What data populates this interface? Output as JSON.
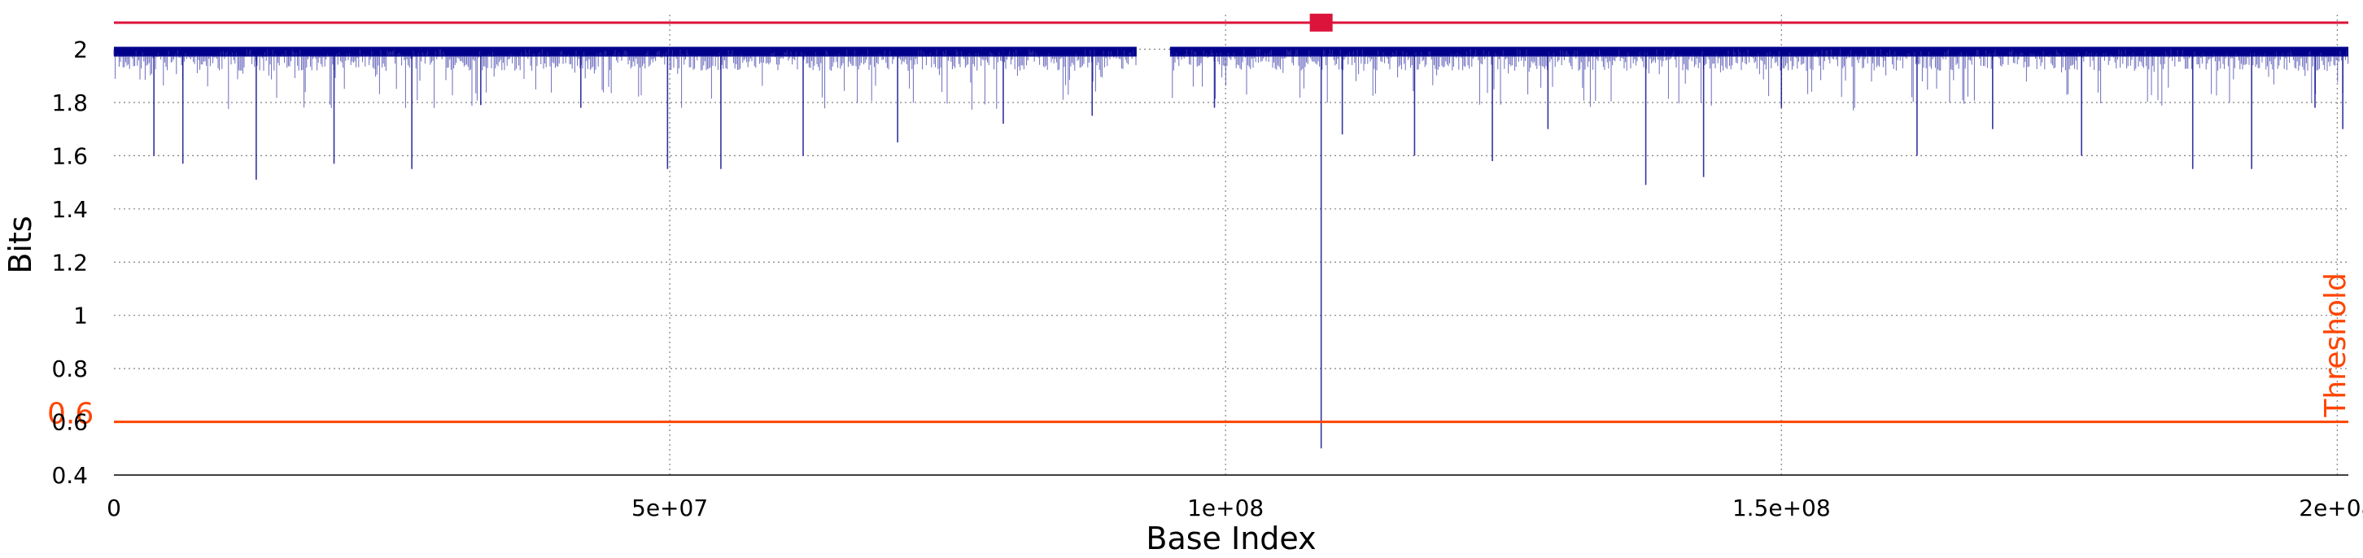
{
  "chart_data": {
    "type": "line",
    "xlabel": "Base Index",
    "ylabel": "Bits",
    "xlim": [
      0,
      201000000
    ],
    "ylim": [
      0.4,
      2.13
    ],
    "x_ticks": [
      {
        "value": 0,
        "label": "0"
      },
      {
        "value": 50000000,
        "label": "5e+07"
      },
      {
        "value": 100000000,
        "label": "1e+08"
      },
      {
        "value": 150000000,
        "label": "1.5e+08"
      },
      {
        "value": 200000000,
        "label": "2e+08"
      }
    ],
    "y_ticks": [
      {
        "value": 0.4,
        "label": "0.4"
      },
      {
        "value": 0.6,
        "label": "0.6"
      },
      {
        "value": 0.8,
        "label": "0.8"
      },
      {
        "value": 1.0,
        "label": "1"
      },
      {
        "value": 1.2,
        "label": "1.2"
      },
      {
        "value": 1.4,
        "label": "1.4"
      },
      {
        "value": 1.6,
        "label": "1.6"
      },
      {
        "value": 1.8,
        "label": "1.8"
      },
      {
        "value": 2.0,
        "label": "2"
      }
    ],
    "grid": true,
    "colors": {
      "series": "#00008b",
      "threshold": "#ff4500",
      "top_line": "#dc143c",
      "grid": "#808080"
    },
    "series": [
      {
        "baseline": 2.0,
        "gap": [
          92000000,
          95000000
        ],
        "dips": [
          [
            3600000,
            1.6
          ],
          [
            6200000,
            1.57
          ],
          [
            12800000,
            1.51
          ],
          [
            19800000,
            1.57
          ],
          [
            26800000,
            1.55
          ],
          [
            33000000,
            1.79
          ],
          [
            42000000,
            1.78
          ],
          [
            49800000,
            1.55
          ],
          [
            54600000,
            1.55
          ],
          [
            62000000,
            1.6
          ],
          [
            70500000,
            1.65
          ],
          [
            80000000,
            1.72
          ],
          [
            88000000,
            1.75
          ],
          [
            99000000,
            1.78
          ],
          [
            108600000,
            0.5
          ],
          [
            110500000,
            1.68
          ],
          [
            117000000,
            1.6
          ],
          [
            124000000,
            1.58
          ],
          [
            129000000,
            1.7
          ],
          [
            137800000,
            1.49
          ],
          [
            143000000,
            1.52
          ],
          [
            150000000,
            1.78
          ],
          [
            162200000,
            1.6
          ],
          [
            169000000,
            1.7
          ],
          [
            177000000,
            1.6
          ],
          [
            187000000,
            1.55
          ],
          [
            192300000,
            1.55
          ],
          [
            198000000,
            1.78
          ],
          [
            200500000,
            1.7
          ]
        ]
      }
    ],
    "threshold": {
      "value": 0.6,
      "label": "0.6",
      "annotation": "Threshold"
    },
    "top_reference": {
      "value": 2.1,
      "marker_x": 108600000
    }
  }
}
